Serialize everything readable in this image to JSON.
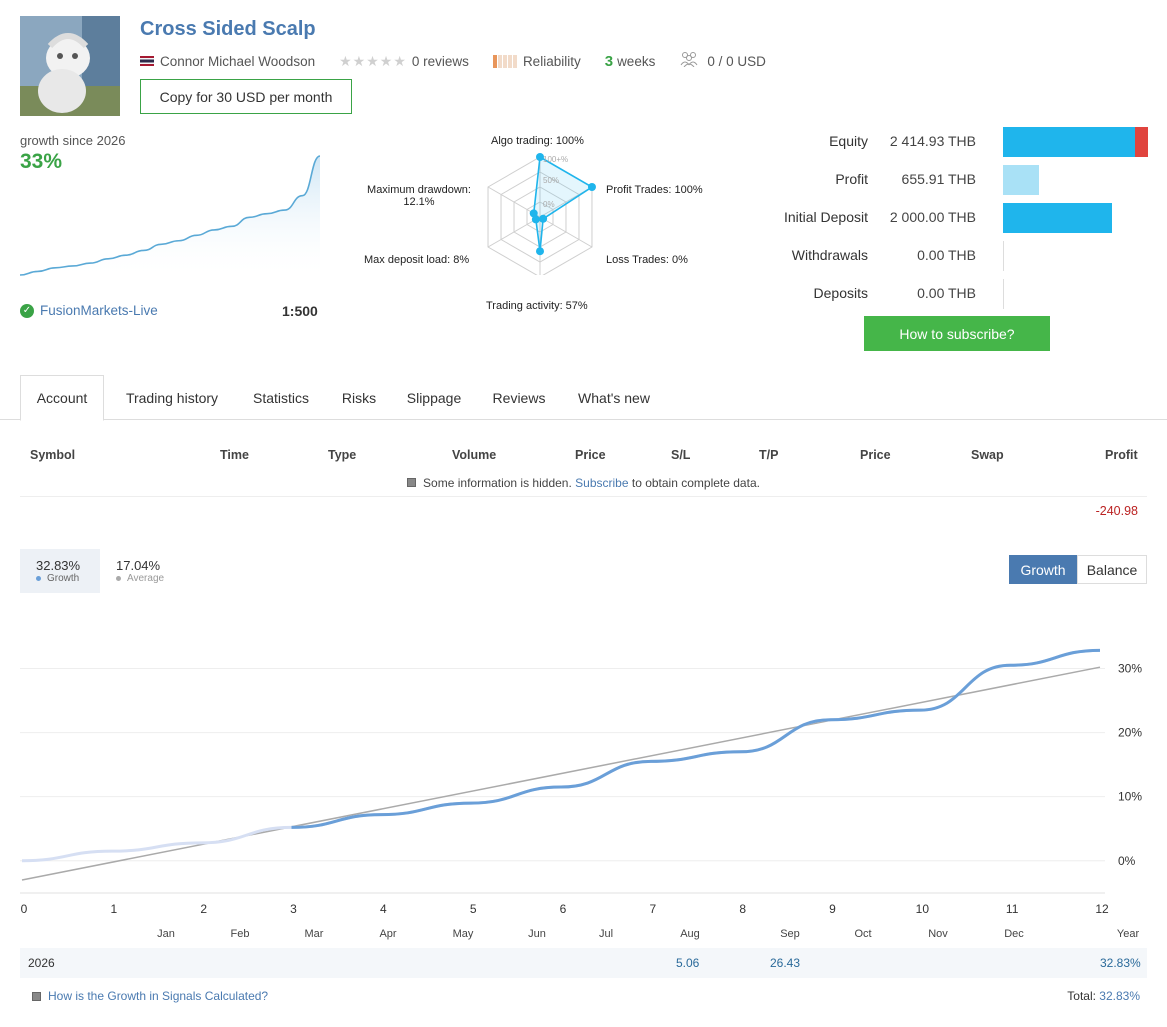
{
  "header": {
    "title": "Cross Sided Scalp",
    "author": "Connor Michael Woodson",
    "reviews": "0 reviews",
    "reliability": "Reliability",
    "weeks_num": "3",
    "weeks_label": "weeks",
    "subscribers": "0 / 0 USD",
    "copy_button": "Copy for 30 USD per month"
  },
  "summary": {
    "growth_since": "growth since 2026",
    "growth_value": "33%",
    "broker": "FusionMarkets-Live",
    "leverage": "1:500"
  },
  "radar": {
    "algo": "Algo trading: 100%",
    "profit_trades": "Profit Trades: 100%",
    "loss_trades": "Loss Trades: 0%",
    "activity": "Trading activity: 57%",
    "deposit_load": "Max deposit load: 8%",
    "drawdown_line1": "Maximum drawdown:",
    "drawdown_line2": "12.1%",
    "ring_100": "100+%",
    "ring_50": "50%",
    "ring_0": "0%",
    "values": {
      "algo": 1.0,
      "profit_trades": 1.0,
      "loss_trades": 0.0,
      "activity": 0.57,
      "deposit_load": 0.08,
      "drawdown": 0.121
    }
  },
  "stats": [
    {
      "label": "Equity",
      "value": "2 414.93 THB",
      "bar_fraction": 1.0,
      "color": "#1fb5ec"
    },
    {
      "label": "Profit",
      "value": "655.91 THB",
      "bar_fraction": 0.25,
      "color": "#a9e1f6"
    },
    {
      "label": "Initial Deposit",
      "value": "2 000.00 THB",
      "bar_fraction": 0.75,
      "color": "#1fb5ec"
    },
    {
      "label": "Withdrawals",
      "value": "0.00 THB",
      "bar_fraction": 0,
      "color": "#1fb5ec"
    },
    {
      "label": "Deposits",
      "value": "0.00 THB",
      "bar_fraction": 0,
      "color": "#1fb5ec"
    }
  ],
  "subscribe_button": "How to subscribe?",
  "tabs": [
    "Account",
    "Trading history",
    "Statistics",
    "Risks",
    "Slippage",
    "Reviews",
    "What's new"
  ],
  "table": {
    "headers": [
      "Symbol",
      "Time",
      "Type",
      "Volume",
      "Price",
      "S/L",
      "T/P",
      "Price",
      "Swap",
      "Profit"
    ],
    "hidden_prefix": "Some information is hidden.",
    "hidden_link": "Subscribe",
    "hidden_suffix": "to obtain complete data.",
    "total_profit": "-240.98"
  },
  "legend": {
    "growth_value": "32.83%",
    "growth_label": "Growth",
    "average_value": "17.04%",
    "average_label": "Average"
  },
  "toggle": {
    "growth": "Growth",
    "balance": "Balance"
  },
  "chart_data": {
    "type": "line",
    "x_ticks": [
      "0",
      "1",
      "2",
      "3",
      "4",
      "5",
      "6",
      "7",
      "8",
      "9",
      "10",
      "11",
      "12"
    ],
    "months": [
      "Jan",
      "Feb",
      "Mar",
      "Apr",
      "May",
      "Jun",
      "Jul",
      "Aug",
      "Sep",
      "Oct",
      "Nov",
      "Dec",
      "Year"
    ],
    "y_ticks": [
      "0%",
      "10%",
      "20%",
      "30%"
    ],
    "ylim": [
      -3,
      36
    ],
    "xlim": [
      0,
      12
    ],
    "series": [
      {
        "name": "Growth",
        "color": "#6a9fd8",
        "x": [
          0,
          1,
          2,
          3,
          4,
          5,
          6,
          7,
          8,
          9,
          10,
          11,
          12
        ],
        "y": [
          0,
          1.5,
          2.8,
          5.2,
          7.2,
          9,
          11.5,
          15.5,
          17,
          22,
          23.5,
          30.5,
          32.83
        ]
      },
      {
        "name": "Average",
        "color": "#aaaaaa",
        "x": [
          0,
          12
        ],
        "y": [
          -3,
          30.2
        ]
      }
    ]
  },
  "mini_chart": {
    "y": [
      0,
      1,
      2,
      2.5,
      3.3,
      4.5,
      5.5,
      6.8,
      8.5,
      9.5,
      11,
      12.5,
      13.5,
      16,
      17,
      18,
      22,
      33
    ]
  },
  "year_row": {
    "year": "2026",
    "aug": "5.06",
    "sep": "26.43",
    "total": "32.83%"
  },
  "footer": {
    "link": "How is the Growth in Signals Calculated?",
    "total_label": "Total:",
    "total_value": "32.83%"
  }
}
